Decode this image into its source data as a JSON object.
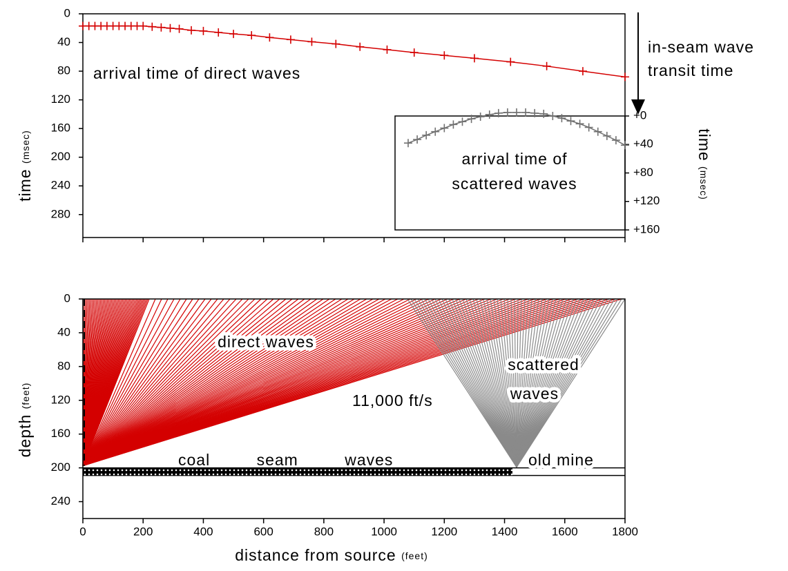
{
  "chart_data": [
    {
      "type": "scatter",
      "ylabel": "time",
      "ylabel_unit": "(msec)",
      "y2label": "time",
      "y2label_unit": "(msec)",
      "annotations": [
        "arrival time of direct waves",
        "in-seam wave",
        "transit time",
        "arrival time of",
        "scattered waves"
      ],
      "xlim": [
        0,
        1800
      ],
      "xticks": [
        0,
        200,
        400,
        600,
        800,
        1000,
        1200,
        1400,
        1600,
        1800
      ],
      "xtick_labels": false,
      "ylim": [
        0,
        312
      ],
      "yticks": [
        0,
        40,
        80,
        120,
        160,
        200,
        240,
        280
      ],
      "y_inverted": true,
      "y2lim": [
        0,
        160
      ],
      "y2ticks": [
        {
          "value": 0,
          "label": "+0"
        },
        {
          "value": 40,
          "label": "+40"
        },
        {
          "value": 80,
          "label": "+80"
        },
        {
          "value": 120,
          "label": "+120"
        },
        {
          "value": 160,
          "label": "+160"
        }
      ],
      "series": [
        {
          "color": "#d40000",
          "marker": "+",
          "x": [
            0,
            20,
            40,
            60,
            80,
            100,
            120,
            140,
            160,
            180,
            200,
            230,
            260,
            290,
            320,
            360,
            400,
            450,
            500,
            560,
            620,
            690,
            760,
            840,
            920,
            1010,
            1100,
            1200,
            1300,
            1420,
            1540,
            1660,
            1800
          ],
          "values": [
            17,
            17,
            17,
            17,
            17,
            17,
            17,
            17,
            17,
            17,
            17,
            18,
            19,
            20,
            21,
            23,
            24,
            26,
            28,
            30,
            33,
            36,
            39,
            42,
            46,
            50,
            54,
            58,
            62,
            67,
            73,
            80,
            88
          ]
        },
        {
          "color": "#707070",
          "marker": "+",
          "axis": "y2",
          "x": [
            1080,
            1110,
            1140,
            1170,
            1200,
            1230,
            1260,
            1290,
            1320,
            1350,
            1380,
            1410,
            1440,
            1470,
            1500,
            1530,
            1560,
            1590,
            1620,
            1650,
            1680,
            1710,
            1740,
            1770,
            1800
          ],
          "values": [
            38,
            33,
            27,
            22,
            17,
            12,
            8,
            4,
            1,
            -2,
            -4,
            -5,
            -5,
            -5,
            -4,
            -3,
            0,
            3,
            7,
            11,
            16,
            22,
            28,
            34,
            41
          ]
        }
      ]
    },
    {
      "type": "diagram",
      "xlabel": "distance from source",
      "xlabel_unit": "(feet)",
      "ylabel": "depth",
      "ylabel_unit": "(feet)",
      "annotations": [
        "direct waves",
        "scattered",
        "waves",
        "11,000 ft/s",
        "coal seam waves",
        "old mine"
      ],
      "xlim": [
        0,
        1800
      ],
      "xticks": [
        0,
        200,
        400,
        600,
        800,
        1000,
        1200,
        1400,
        1600,
        1800
      ],
      "xtick_labels": true,
      "ylim": [
        0,
        260
      ],
      "yticks": [
        0,
        40,
        80,
        120,
        160,
        200,
        240
      ],
      "y_inverted": true
    }
  ]
}
